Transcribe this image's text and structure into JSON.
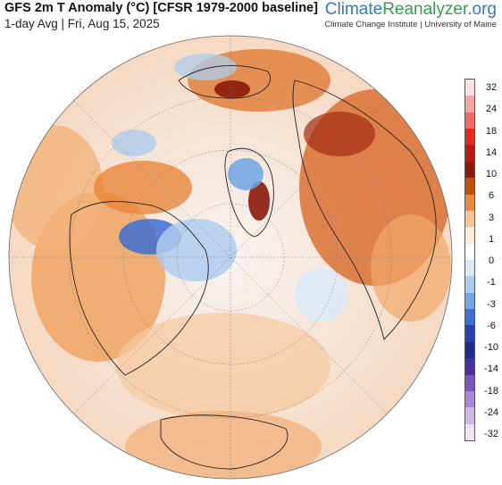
{
  "header": {
    "title": "GFS 2m T Anomaly (°C) [CFSR 1979-2000 baseline]",
    "subtitle": "1-day Avg | Fri, Aug 15, 2025"
  },
  "brand": {
    "name_part1": "Climate",
    "name_part2": "Reanalyzer",
    "name_part3": ".org",
    "tagline": "Climate Change Institute | University of Maine"
  },
  "legend": {
    "labels": [
      "32",
      "24",
      "18",
      "14",
      "10",
      "6",
      "3",
      "1",
      "0",
      "-1",
      "-3",
      "-6",
      "-10",
      "-14",
      "-18",
      "-24",
      "-32"
    ],
    "colors": [
      "#fde2e0",
      "#f6a6a0",
      "#ef6a64",
      "#e52b1e",
      "#b81a10",
      "#8a1a0a",
      "#c2500c",
      "#eb8a3c",
      "#f6c596",
      "#fdebd8",
      "#ffffff",
      "#dbe9f7",
      "#aecdee",
      "#6ea6e4",
      "#3e6fd2",
      "#2a3fb0",
      "#1f2a8c",
      "#4830a0",
      "#7a56c0",
      "#a888d6",
      "#cdb8e8",
      "#efe4f6"
    ]
  },
  "map": {
    "projection": "orthographic-north-polar",
    "regions": [
      "north-america-warm",
      "hudson-bay-cool",
      "greenland-cool",
      "greenland-warm-east",
      "siberia-warm",
      "europe-warm",
      "arctic-ocean-mixed",
      "pacific-neutral"
    ]
  }
}
